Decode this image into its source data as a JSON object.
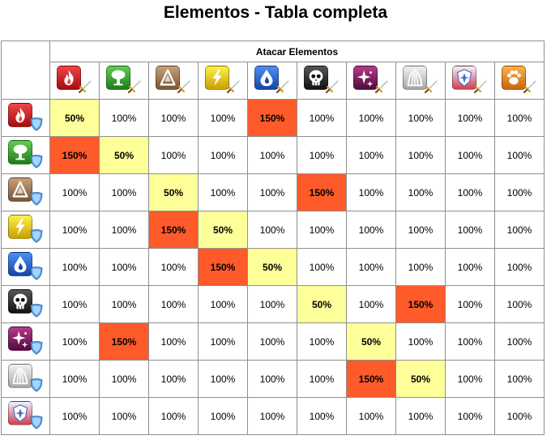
{
  "page": {
    "title": "Elementos - Tabla completa"
  },
  "table": {
    "header": "Atacar Elementos",
    "elements": [
      {
        "id": "fire",
        "icon": "fire-icon",
        "color_top": "#f04545",
        "color_bottom": "#a40d0d"
      },
      {
        "id": "nature",
        "icon": "tree-icon",
        "color_top": "#5fcf4f",
        "color_bottom": "#1d7d1a"
      },
      {
        "id": "earth",
        "icon": "rock-icon",
        "color_top": "#c8a07a",
        "color_bottom": "#7a5434"
      },
      {
        "id": "electric",
        "icon": "lightning-icon",
        "color_top": "#fff04a",
        "color_bottom": "#c9a000"
      },
      {
        "id": "water",
        "icon": "water-drop-icon",
        "color_top": "#4d8ff0",
        "color_bottom": "#1545a8"
      },
      {
        "id": "dark",
        "icon": "skull-icon",
        "color_top": "#555555",
        "color_bottom": "#111111"
      },
      {
        "id": "magic",
        "icon": "sparkle-icon",
        "color_top": "#b83a8c",
        "color_bottom": "#4e0c3c"
      },
      {
        "id": "light",
        "icon": "light-rays-icon",
        "color_top": "#f2f2f2",
        "color_bottom": "#a6a6a6"
      },
      {
        "id": "legend",
        "icon": "shield-emblem-icon",
        "color_top": "#eef4ff",
        "color_bottom": "#d23c4c"
      },
      {
        "id": "beast",
        "icon": "paw-icon",
        "color_top": "#ffb050",
        "color_bottom": "#c8660a"
      }
    ],
    "rows": [
      {
        "values": [
          "50%",
          "100%",
          "100%",
          "100%",
          "150%",
          "100%",
          "100%",
          "100%",
          "100%",
          "100%"
        ],
        "states": [
          "weak",
          "",
          "",
          "",
          "strong",
          "",
          "",
          "",
          "",
          ""
        ]
      },
      {
        "values": [
          "150%",
          "50%",
          "100%",
          "100%",
          "100%",
          "100%",
          "100%",
          "100%",
          "100%",
          "100%"
        ],
        "states": [
          "strong",
          "weak",
          "",
          "",
          "",
          "",
          "",
          "",
          "",
          ""
        ]
      },
      {
        "values": [
          "100%",
          "100%",
          "50%",
          "100%",
          "100%",
          "150%",
          "100%",
          "100%",
          "100%",
          "100%"
        ],
        "states": [
          "",
          "",
          "weak",
          "",
          "",
          "strong",
          "",
          "",
          "",
          ""
        ]
      },
      {
        "values": [
          "100%",
          "100%",
          "150%",
          "50%",
          "100%",
          "100%",
          "100%",
          "100%",
          "100%",
          "100%"
        ],
        "states": [
          "",
          "",
          "strong",
          "weak",
          "",
          "",
          "",
          "",
          "",
          ""
        ]
      },
      {
        "values": [
          "100%",
          "100%",
          "100%",
          "150%",
          "50%",
          "100%",
          "100%",
          "100%",
          "100%",
          "100%"
        ],
        "states": [
          "",
          "",
          "",
          "strong",
          "weak",
          "",
          "",
          "",
          "",
          ""
        ]
      },
      {
        "values": [
          "100%",
          "100%",
          "100%",
          "100%",
          "100%",
          "50%",
          "100%",
          "150%",
          "100%",
          "100%"
        ],
        "states": [
          "",
          "",
          "",
          "",
          "",
          "weak",
          "",
          "strong",
          "",
          ""
        ]
      },
      {
        "values": [
          "100%",
          "150%",
          "100%",
          "100%",
          "100%",
          "100%",
          "50%",
          "100%",
          "100%",
          "100%"
        ],
        "states": [
          "",
          "strong",
          "",
          "",
          "",
          "",
          "weak",
          "",
          "",
          ""
        ]
      },
      {
        "values": [
          "100%",
          "100%",
          "100%",
          "100%",
          "100%",
          "100%",
          "150%",
          "50%",
          "100%",
          "100%"
        ],
        "states": [
          "",
          "",
          "",
          "",
          "",
          "",
          "strong",
          "weak",
          "",
          ""
        ]
      },
      {
        "values": [
          "100%",
          "100%",
          "100%",
          "100%",
          "100%",
          "100%",
          "100%",
          "100%",
          "100%",
          "100%"
        ],
        "states": [
          "",
          "",
          "",
          "",
          "",
          "",
          "",
          "",
          "",
          ""
        ]
      }
    ],
    "colors": {
      "weak": "#ffff99",
      "strong": "#ff5a2a",
      "border": "#8f8f8f"
    },
    "attack_badge_icon": "sword-icon",
    "defense_badge_icon": "shield-icon"
  }
}
